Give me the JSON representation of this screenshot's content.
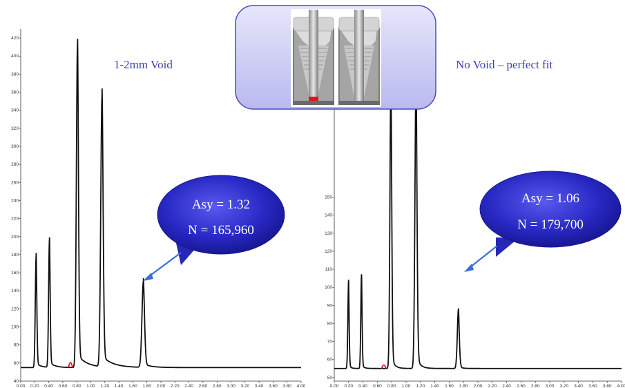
{
  "colors": {
    "trace": "#111111",
    "overlap_marker": "#dd1111",
    "caption": "#3f3fb0",
    "bubble": "#2626b8",
    "panel_fill": "#c9c9f4",
    "panel_border": "#4a4ac0"
  },
  "chart_data": [
    {
      "type": "line",
      "caption": "1-2mm Void",
      "callout": {
        "line1": "Asy = 1.32",
        "line2": "N = 165,960"
      },
      "xlim": [
        0,
        4.0
      ],
      "ylim": [
        40,
        430
      ],
      "x_ticks": [
        "0.00",
        "0.20",
        "0.40",
        "0.60",
        "0.80",
        "1.00",
        "1.20",
        "1.40",
        "1.60",
        "1.80",
        "2.00",
        "2.20",
        "2.40",
        "2.60",
        "2.80",
        "3.00",
        "3.20",
        "3.40",
        "3.60",
        "3.80",
        "4.00"
      ],
      "y_ticks": [
        "40",
        "60",
        "80",
        "100",
        "120",
        "140",
        "160",
        "180",
        "200",
        "220",
        "240",
        "260",
        "280",
        "300",
        "320",
        "340",
        "360",
        "380",
        "400",
        "420"
      ],
      "baseline": 55,
      "peaks": [
        {
          "x": 0.22,
          "height": 178,
          "width": 0.012,
          "tail": 0.03
        },
        {
          "x": 0.41,
          "height": 196,
          "width": 0.012,
          "tail": 0.035
        },
        {
          "x": 0.81,
          "height": 412,
          "width": 0.016,
          "tail": 0.06
        },
        {
          "x": 1.16,
          "height": 354,
          "width": 0.018,
          "tail": 0.07
        },
        {
          "x": 1.75,
          "height": 150,
          "width": 0.02,
          "tail": 0.05
        }
      ],
      "red_mark_x": 0.71
    },
    {
      "type": "line",
      "caption": "No Void – perfect fit",
      "callout": {
        "line1": "Asy = 1.06",
        "line2": "N = 179,700"
      },
      "xlim": [
        0,
        4.0
      ],
      "ylim": [
        48,
        200
      ],
      "x_ticks": [
        "0.00",
        "0.20",
        "0.40",
        "0.60",
        "0.80",
        "1.00",
        "1.20",
        "1.40",
        "1.60",
        "1.80",
        "2.00",
        "2.20",
        "2.40",
        "2.60",
        "2.80",
        "3.00",
        "3.20",
        "3.40",
        "3.60",
        "3.80",
        "4.00"
      ],
      "y_ticks": [
        "50",
        "60",
        "70",
        "80",
        "90",
        "100",
        "110",
        "120",
        "130",
        "140",
        "150"
      ],
      "baseline": 55,
      "peaks": [
        {
          "x": 0.2,
          "height": 104,
          "width": 0.01,
          "tail": 0.012
        },
        {
          "x": 0.38,
          "height": 107,
          "width": 0.01,
          "tail": 0.014
        },
        {
          "x": 0.79,
          "height": 220,
          "width": 0.014,
          "tail": 0.02
        },
        {
          "x": 1.14,
          "height": 220,
          "width": 0.016,
          "tail": 0.024
        },
        {
          "x": 1.73,
          "height": 88,
          "width": 0.016,
          "tail": 0.018
        }
      ],
      "red_mark_x": 0.69
    }
  ]
}
